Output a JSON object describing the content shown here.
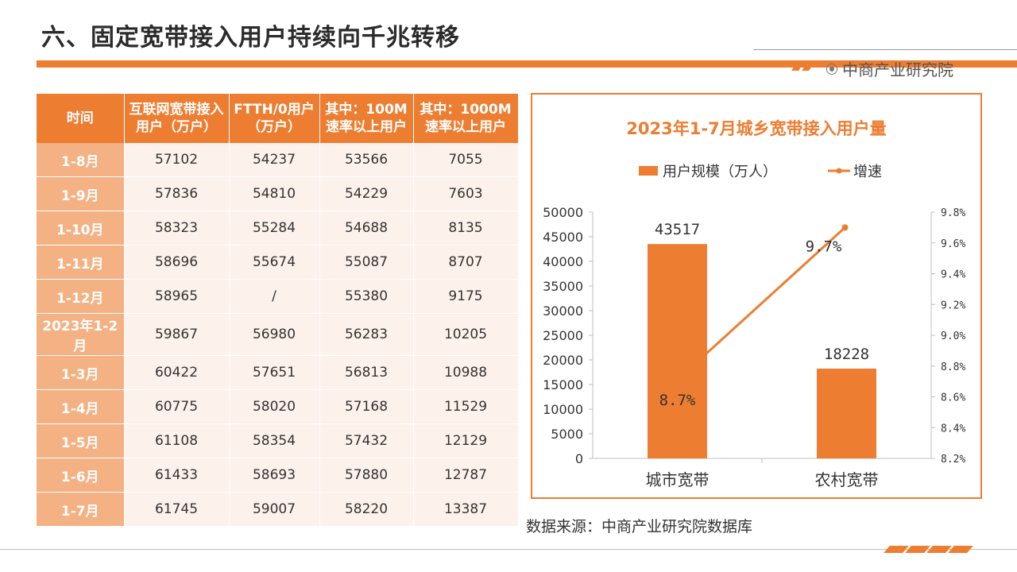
{
  "page": {
    "title": "六、固定宽带接入用户持续向千兆转移",
    "brand": "中商产业研究院",
    "source": "数据来源：中商产业研究院数据库"
  },
  "table": {
    "headers": [
      "时间",
      "互联网宽带接入用户（万户）",
      "FTTH/0用户（万户）",
      "其中：100M速率以上用户",
      "其中：1000M速率以上用户"
    ],
    "rows": [
      [
        "1-8月",
        "57102",
        "54237",
        "53566",
        "7055"
      ],
      [
        "1-9月",
        "57836",
        "54810",
        "54229",
        "7603"
      ],
      [
        "1-10月",
        "58323",
        "55284",
        "54688",
        "8135"
      ],
      [
        "1-11月",
        "58696",
        "55674",
        "55087",
        "8707"
      ],
      [
        "1-12月",
        "58965",
        "/",
        "55380",
        "9175"
      ],
      [
        "2023年1-2月",
        "59867",
        "56980",
        "56283",
        "10205"
      ],
      [
        "1-3月",
        "60422",
        "57651",
        "56813",
        "10988"
      ],
      [
        "1-4月",
        "60775",
        "58020",
        "57168",
        "11529"
      ],
      [
        "1-5月",
        "61108",
        "58354",
        "57432",
        "12129"
      ],
      [
        "1-6月",
        "61433",
        "58693",
        "57880",
        "12787"
      ],
      [
        "1-7月",
        "61745",
        "59007",
        "58220",
        "13387"
      ]
    ]
  },
  "chart_data": {
    "type": "bar",
    "title": "2023年1-7月城乡宽带接入用户量",
    "categories": [
      "城市宽带",
      "农村宽带"
    ],
    "series": [
      {
        "name": "用户规模（万人）",
        "type": "bar",
        "axis": "left",
        "values": [
          43517,
          18228
        ],
        "labels": [
          "43517",
          "18228"
        ]
      },
      {
        "name": "增速",
        "type": "line",
        "axis": "right",
        "values": [
          8.7,
          9.7
        ],
        "labels": [
          "8.7%",
          "9.7%"
        ]
      }
    ],
    "y_left": {
      "min": 0,
      "max": 50000,
      "ticks": [
        "0",
        "5000",
        "10000",
        "15000",
        "20000",
        "25000",
        "30000",
        "35000",
        "40000",
        "45000",
        "50000"
      ]
    },
    "y_right": {
      "min": 8.2,
      "max": 9.8,
      "ticks": [
        "8.2%",
        "8.4%",
        "8.6%",
        "8.8%",
        "9.0%",
        "9.2%",
        "9.4%",
        "9.6%",
        "9.8%"
      ]
    },
    "legend_position": "top",
    "grid": false,
    "colors": {
      "bar": "#ed7d31",
      "line": "#ed7d31",
      "title": "#ed7d31"
    }
  }
}
